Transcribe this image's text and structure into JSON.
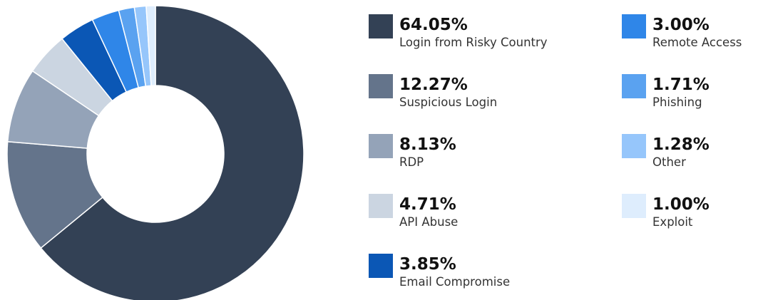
{
  "chart_data": {
    "type": "pie",
    "categories": [
      "Login from Risky Country",
      "Suspicious Login",
      "RDP",
      "API Abuse",
      "Email Compromise",
      "Remote Access",
      "Phishing",
      "Other",
      "Exploit"
    ],
    "values": [
      64.05,
      12.27,
      8.13,
      4.71,
      3.85,
      3.0,
      1.71,
      1.28,
      1.0
    ],
    "value_labels": [
      "64.05%",
      "12.27%",
      "8.13%",
      "4.71%",
      "3.85%",
      "3.00%",
      "1.71%",
      "1.28%",
      "1.00%"
    ],
    "colors": [
      "#334155",
      "#64748b",
      "#94a3b8",
      "#cbd5e1",
      "#0b57b5",
      "#2f86e8",
      "#5aa2f0",
      "#96c6fb",
      "#deedfd"
    ],
    "donut": true
  }
}
